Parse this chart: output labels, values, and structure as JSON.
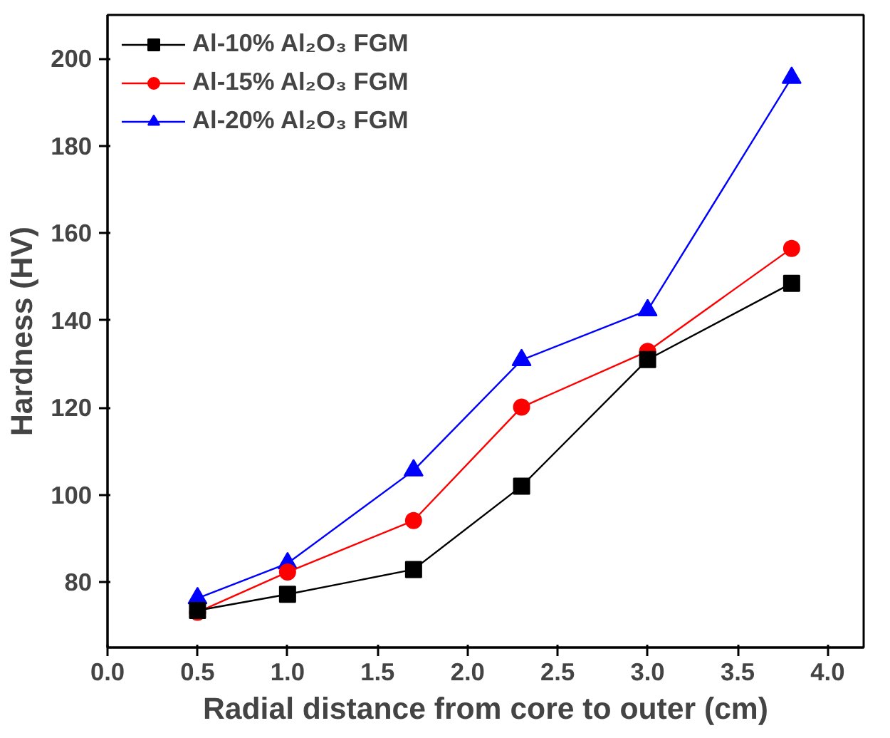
{
  "chart_data": {
    "type": "line",
    "xlabel": "Radial distance from core to outer (cm)",
    "ylabel": "Hardness (HV)",
    "x": [
      0.5,
      1.0,
      1.7,
      2.3,
      3.0,
      3.8
    ],
    "series": [
      {
        "name": "Al-10% Al₂O₃ FGM",
        "color": "#000000",
        "marker": "square",
        "values": [
          73.5,
          77.2,
          82.9,
          102,
          131,
          148.5
        ]
      },
      {
        "name": "Al-15% Al₂O₃ FGM",
        "color": "#ff0000",
        "marker": "circle",
        "values": [
          73.1,
          82.3,
          94.1,
          120.1,
          132.9,
          156.5
        ]
      },
      {
        "name": "Al-20% Al₂O₃ FGM",
        "color": "#0000ff",
        "marker": "triangle",
        "values": [
          76.3,
          84.3,
          105.6,
          130.9,
          142.3,
          195.6
        ]
      }
    ],
    "xlim": [
      0,
      4.2
    ],
    "ylim": [
      65,
      210
    ],
    "xticks": [
      {
        "value": 0,
        "label": "0.0"
      },
      0.5,
      {
        "value": 1,
        "label": "1.0"
      },
      1.5,
      {
        "value": 2,
        "label": "2.0"
      },
      2.5,
      {
        "value": 3,
        "label": "3.0"
      },
      3.5,
      {
        "value": 4,
        "label": "4.0"
      }
    ],
    "yticks": [
      80,
      100,
      120,
      140,
      160,
      180,
      200
    ],
    "grid": false,
    "legend": "top left",
    "line_style": "solid"
  }
}
